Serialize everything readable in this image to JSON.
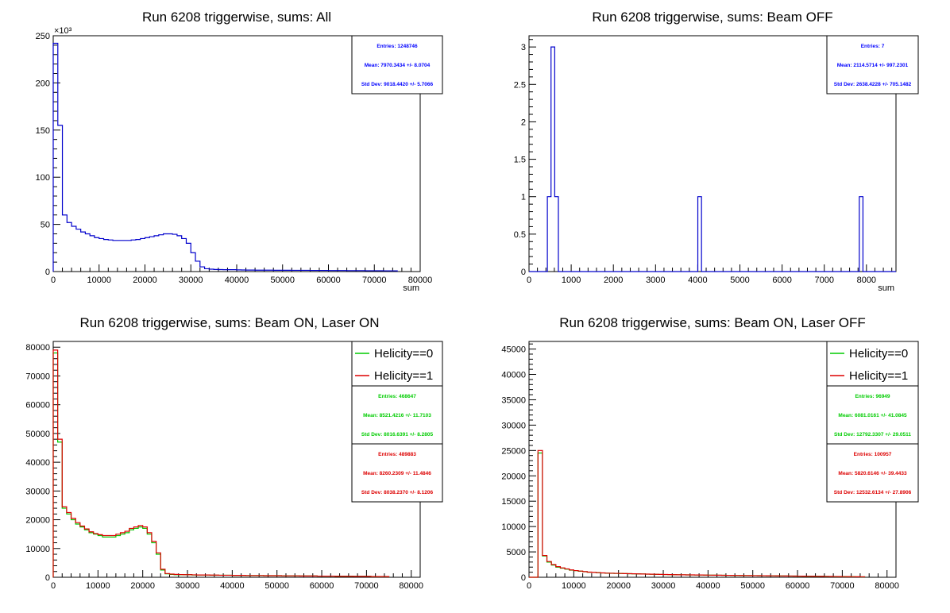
{
  "colors": {
    "blue": "#0000cc",
    "stats_blue": "#0000ff",
    "green": "#00cc00",
    "red": "#dd0000",
    "axis": "#000000"
  },
  "chart_data": [
    {
      "type": "histogram",
      "title": "Run 6208 triggerwise, sums: All",
      "xlabel": "sum",
      "ylabel": "",
      "xlim": [
        0,
        80000
      ],
      "ylim": [
        0,
        250000
      ],
      "x_ticks": [
        0,
        10000,
        20000,
        30000,
        40000,
        50000,
        60000,
        70000,
        80000
      ],
      "y_ticks": [
        0,
        50,
        100,
        150,
        200,
        250
      ],
      "y_exponent": "×10³",
      "y_scale": 1000,
      "series": [
        {
          "color": "#0000cc",
          "bin_width": 1000,
          "x0": 0,
          "values": [
            242000,
            155000,
            60000,
            52000,
            48000,
            45000,
            42000,
            40000,
            38000,
            36000,
            35000,
            34000,
            33500,
            33000,
            33000,
            33000,
            33000,
            33500,
            34000,
            35000,
            36000,
            37000,
            38000,
            39000,
            40000,
            40000,
            39500,
            38000,
            35000,
            30000,
            20000,
            11000,
            5000,
            3000,
            2500,
            2200,
            2100,
            2000,
            2000,
            2000,
            1800,
            1700,
            1600,
            1600,
            1500,
            1500,
            1500,
            1500,
            1400,
            1400,
            1400,
            1400,
            1300,
            1300,
            1300,
            1300,
            1200,
            1200,
            1200,
            1200,
            1100,
            1100,
            1100,
            1100,
            1000,
            1000,
            1000,
            1000,
            900,
            900,
            900,
            900,
            800,
            800,
            800
          ]
        }
      ],
      "stats": [
        {
          "color": "#0000ff",
          "lines": [
            "Entries: 1248746",
            "Mean: 7970.3434 +/- 8.0704",
            "Std Dev: 9018.4420 +/- 5.7066"
          ]
        }
      ],
      "legend": []
    },
    {
      "type": "histogram",
      "title": "Run 6208 triggerwise, sums: Beam OFF",
      "xlabel": "sum",
      "ylabel": "",
      "xlim": [
        0,
        8700
      ],
      "ylim": [
        0,
        3.15
      ],
      "x_ticks": [
        0,
        1000,
        2000,
        3000,
        4000,
        5000,
        6000,
        7000,
        8000
      ],
      "y_ticks": [
        0,
        0.5,
        1,
        1.5,
        2,
        2.5,
        3
      ],
      "y_exponent": "",
      "y_scale": 1,
      "series": [
        {
          "color": "#0000cc",
          "bin_width": 87,
          "x0": 0,
          "values": [
            0,
            0,
            0,
            0,
            0,
            1,
            3,
            1,
            0,
            0,
            0,
            0,
            0,
            0,
            0,
            0,
            0,
            0,
            0,
            0,
            0,
            0,
            0,
            0,
            0,
            0,
            0,
            0,
            0,
            0,
            0,
            0,
            0,
            0,
            0,
            0,
            0,
            0,
            0,
            0,
            0,
            0,
            0,
            0,
            0,
            0,
            1,
            0,
            0,
            0,
            0,
            0,
            0,
            0,
            0,
            0,
            0,
            0,
            0,
            0,
            0,
            0,
            0,
            0,
            0,
            0,
            0,
            0,
            0,
            0,
            0,
            0,
            0,
            0,
            0,
            0,
            0,
            0,
            0,
            0,
            0,
            0,
            0,
            0,
            0,
            0,
            0,
            0,
            0,
            0,
            1,
            0,
            0,
            0,
            0,
            0,
            0,
            0,
            0,
            0
          ]
        }
      ],
      "stats": [
        {
          "color": "#0000ff",
          "lines": [
            "Entries: 7",
            "Mean: 2114.5714 +/- 997.2301",
            "Std Dev: 2638.4228 +/- 705.1482"
          ]
        }
      ],
      "legend": []
    },
    {
      "type": "histogram",
      "title": "Run 6208 triggerwise, sums: Beam ON, Laser ON",
      "xlabel": "",
      "ylabel": "",
      "xlim": [
        0,
        82000
      ],
      "ylim": [
        0,
        82000
      ],
      "x_ticks": [
        0,
        10000,
        20000,
        30000,
        40000,
        50000,
        60000,
        70000,
        80000
      ],
      "y_ticks": [
        0,
        10000,
        20000,
        30000,
        40000,
        50000,
        60000,
        70000,
        80000
      ],
      "y_exponent": "",
      "y_scale": 1,
      "series": [
        {
          "name": "Helicity==0",
          "color": "#00cc00",
          "bin_width": 1000,
          "x0": 0,
          "values": [
            78000,
            47000,
            24000,
            22000,
            20000,
            18500,
            17500,
            16500,
            15500,
            15000,
            14500,
            14000,
            14000,
            14000,
            14500,
            15000,
            15500,
            16500,
            17000,
            17500,
            17000,
            15000,
            12000,
            8000,
            2500,
            1200,
            1000,
            900,
            900,
            900,
            900,
            800,
            800,
            800,
            800,
            700,
            700,
            700,
            700,
            700,
            650,
            650,
            650,
            600,
            600,
            600,
            600,
            550,
            550,
            550,
            550,
            500,
            500,
            500,
            500,
            450,
            450,
            450,
            450,
            400,
            400,
            400,
            400,
            350,
            350,
            350,
            350,
            300,
            300,
            300,
            300,
            250,
            250,
            250,
            250
          ]
        },
        {
          "name": "Helicity==1",
          "color": "#dd0000",
          "bin_width": 1000,
          "x0": 0,
          "values": [
            79000,
            48000,
            24500,
            22500,
            20500,
            19000,
            17800,
            16800,
            15800,
            15200,
            14800,
            14500,
            14500,
            14500,
            15000,
            15500,
            16000,
            17000,
            17500,
            18000,
            17500,
            15500,
            12500,
            8500,
            2800,
            1300,
            1100,
            1000,
            950,
            900,
            900,
            850,
            800,
            800,
            800,
            750,
            750,
            700,
            700,
            700,
            650,
            650,
            650,
            600,
            600,
            600,
            600,
            550,
            550,
            550,
            550,
            500,
            500,
            500,
            500,
            450,
            450,
            450,
            450,
            400,
            400,
            400,
            400,
            350,
            350,
            350,
            350,
            300,
            300,
            300,
            300,
            250,
            250,
            250,
            250
          ]
        }
      ],
      "stats": [
        {
          "color": "#00cc00",
          "lines": [
            "Entries: 468647",
            "Mean: 8521.4216 +/- 11.7103",
            "Std Dev: 8016.6391 +/- 8.2805"
          ]
        },
        {
          "color": "#dd0000",
          "lines": [
            "Entries: 489883",
            "Mean: 8260.2309 +/- 11.4846",
            "Std Dev: 8038.2370 +/- 8.1206"
          ]
        }
      ],
      "legend": [
        "Helicity==0",
        "Helicity==1"
      ]
    },
    {
      "type": "histogram",
      "title": "Run 6208 triggerwise, sums: Beam ON, Laser OFF",
      "xlabel": "",
      "ylabel": "",
      "xlim": [
        0,
        82000
      ],
      "ylim": [
        0,
        46500
      ],
      "x_ticks": [
        0,
        10000,
        20000,
        30000,
        40000,
        50000,
        60000,
        70000,
        80000
      ],
      "y_ticks": [
        0,
        5000,
        10000,
        15000,
        20000,
        25000,
        30000,
        35000,
        40000,
        45000
      ],
      "y_exponent": "",
      "y_scale": 1,
      "series": [
        {
          "name": "Helicity==0",
          "color": "#00cc00",
          "bin_width": 1000,
          "x0": 0,
          "values": [
            0,
            0,
            24500,
            4200,
            3000,
            2400,
            2000,
            1800,
            1600,
            1400,
            1300,
            1200,
            1100,
            1000,
            950,
            900,
            850,
            800,
            780,
            760,
            740,
            720,
            700,
            680,
            660,
            640,
            620,
            600,
            580,
            560,
            540,
            520,
            500,
            490,
            480,
            470,
            460,
            450,
            440,
            430,
            420,
            410,
            400,
            390,
            380,
            370,
            360,
            350,
            340,
            330,
            320,
            310,
            300,
            290,
            280,
            270,
            260,
            250,
            240,
            230,
            220,
            210,
            200,
            190,
            180,
            170,
            160,
            150,
            140,
            130,
            120,
            110,
            100,
            90,
            80
          ]
        },
        {
          "name": "Helicity==1",
          "color": "#dd0000",
          "bin_width": 1000,
          "x0": 0,
          "values": [
            0,
            0,
            25000,
            4300,
            3100,
            2500,
            2100,
            1850,
            1650,
            1450,
            1320,
            1220,
            1120,
            1020,
            960,
            910,
            860,
            810,
            790,
            770,
            750,
            730,
            710,
            690,
            670,
            650,
            630,
            610,
            590,
            570,
            550,
            530,
            510,
            495,
            485,
            475,
            465,
            455,
            445,
            435,
            425,
            415,
            405,
            395,
            385,
            375,
            365,
            355,
            345,
            335,
            325,
            315,
            305,
            295,
            285,
            275,
            265,
            255,
            245,
            235,
            225,
            215,
            205,
            195,
            185,
            175,
            165,
            155,
            145,
            135,
            125,
            115,
            105,
            95,
            85
          ]
        }
      ],
      "stats": [
        {
          "color": "#00cc00",
          "lines": [
            "Entries: 96949",
            "Mean: 6081.0161 +/- 41.0845",
            "Std Dev: 12792.3307 +/- 29.0511"
          ]
        },
        {
          "color": "#dd0000",
          "lines": [
            "Entries: 100957",
            "Mean: 5820.6146 +/- 39.4433",
            "Std Dev: 12532.6134 +/- 27.8906"
          ]
        }
      ],
      "legend": [
        "Helicity==0",
        "Helicity==1"
      ]
    }
  ]
}
